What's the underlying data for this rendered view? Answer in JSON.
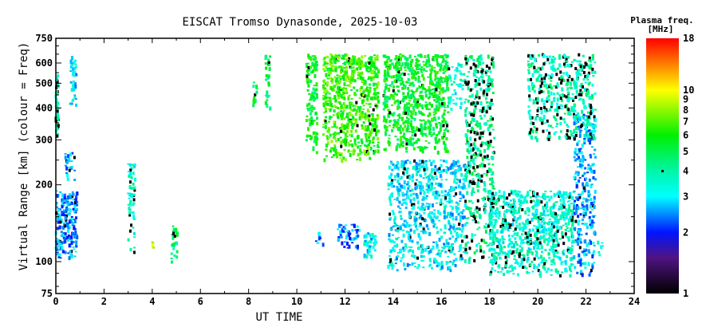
{
  "chart_data": {
    "type": "scatter",
    "title": "EISCAT Tromso Dynasonde, 2025-10-03",
    "xlabel": "UT TIME",
    "ylabel": "Virtual Range [km] (colour = Freq)",
    "xlim": [
      0,
      24
    ],
    "ylim": [
      75,
      750
    ],
    "yscale": "log",
    "xticks": [
      0,
      2,
      4,
      6,
      8,
      10,
      12,
      14,
      16,
      18,
      20,
      22,
      24
    ],
    "yticks": [
      75,
      100,
      200,
      300,
      400,
      500,
      600,
      750
    ],
    "colorbar": {
      "title": "Plasma freq.",
      "units": "[MHz]",
      "range": [
        1,
        18
      ],
      "ticks": [
        1,
        2,
        3,
        4,
        5,
        6,
        7,
        8,
        9,
        10,
        18
      ],
      "marker_value": 4
    },
    "clusters": [
      {
        "t": [
          0.0,
          0.12
        ],
        "h": [
          290,
          540
        ],
        "f": 3.8,
        "n": 60,
        "black": 0.35
      },
      {
        "t": [
          0.0,
          0.9
        ],
        "h": [
          103,
          190
        ],
        "f": 2.5,
        "n": 220,
        "black": 0.05
      },
      {
        "t": [
          0.6,
          0.85
        ],
        "h": [
          410,
          640
        ],
        "f": 3.0,
        "n": 40,
        "black": 0
      },
      {
        "t": [
          0.4,
          0.8
        ],
        "h": [
          200,
          270
        ],
        "f": 2.6,
        "n": 25,
        "black": 0.1
      },
      {
        "t": [
          3.0,
          3.3
        ],
        "h": [
          105,
          250
        ],
        "f": 3.6,
        "n": 60,
        "black": 0.15
      },
      {
        "t": [
          4.0,
          4.1
        ],
        "h": [
          112,
          120
        ],
        "f": 9.5,
        "n": 4,
        "black": 0
      },
      {
        "t": [
          4.8,
          5.05
        ],
        "h": [
          100,
          140
        ],
        "f": 4.5,
        "n": 25,
        "black": 0.1
      },
      {
        "t": [
          8.2,
          8.35
        ],
        "h": [
          400,
          520
        ],
        "f": 5.0,
        "n": 12,
        "black": 0.1
      },
      {
        "t": [
          8.7,
          8.9
        ],
        "h": [
          400,
          650
        ],
        "f": 5.0,
        "n": 30,
        "black": 0.05
      },
      {
        "t": [
          10.4,
          10.85
        ],
        "h": [
          260,
          650
        ],
        "f": 5.5,
        "n": 120,
        "black": 0.05
      },
      {
        "t": [
          11.1,
          13.4
        ],
        "h": [
          250,
          650
        ],
        "f": 6.5,
        "n": 700,
        "black": 0.03
      },
      {
        "t": [
          13.6,
          16.3
        ],
        "h": [
          270,
          650
        ],
        "f": 5.5,
        "n": 700,
        "black": 0.03
      },
      {
        "t": [
          16.3,
          17.0
        ],
        "h": [
          380,
          600
        ],
        "f": 3.5,
        "n": 50,
        "black": 0.05
      },
      {
        "t": [
          17.0,
          18.2
        ],
        "h": [
          100,
          650
        ],
        "f": 4.2,
        "n": 450,
        "black": 0.25
      },
      {
        "t": [
          10.8,
          11.1
        ],
        "h": [
          115,
          130
        ],
        "f": 2.5,
        "n": 10,
        "black": 0
      },
      {
        "t": [
          11.7,
          12.6
        ],
        "h": [
          110,
          140
        ],
        "f": 2.4,
        "n": 60,
        "black": 0
      },
      {
        "t": [
          12.8,
          13.3
        ],
        "h": [
          105,
          130
        ],
        "f": 3.0,
        "n": 40,
        "black": 0
      },
      {
        "t": [
          13.8,
          17.0
        ],
        "h": [
          92,
          250
        ],
        "f": 3.0,
        "n": 700,
        "black": 0.05
      },
      {
        "t": [
          18.0,
          21.5
        ],
        "h": [
          88,
          190
        ],
        "f": 3.5,
        "n": 800,
        "black": 0.1
      },
      {
        "t": [
          21.5,
          22.4
        ],
        "h": [
          88,
          380
        ],
        "f": 2.6,
        "n": 300,
        "black": 0.05
      },
      {
        "t": [
          19.6,
          22.4
        ],
        "h": [
          300,
          650
        ],
        "f": 3.8,
        "n": 450,
        "black": 0.22
      },
      {
        "t": [
          22.5,
          22.7
        ],
        "h": [
          105,
          120
        ],
        "f": 3.5,
        "n": 6,
        "black": 0
      }
    ]
  }
}
